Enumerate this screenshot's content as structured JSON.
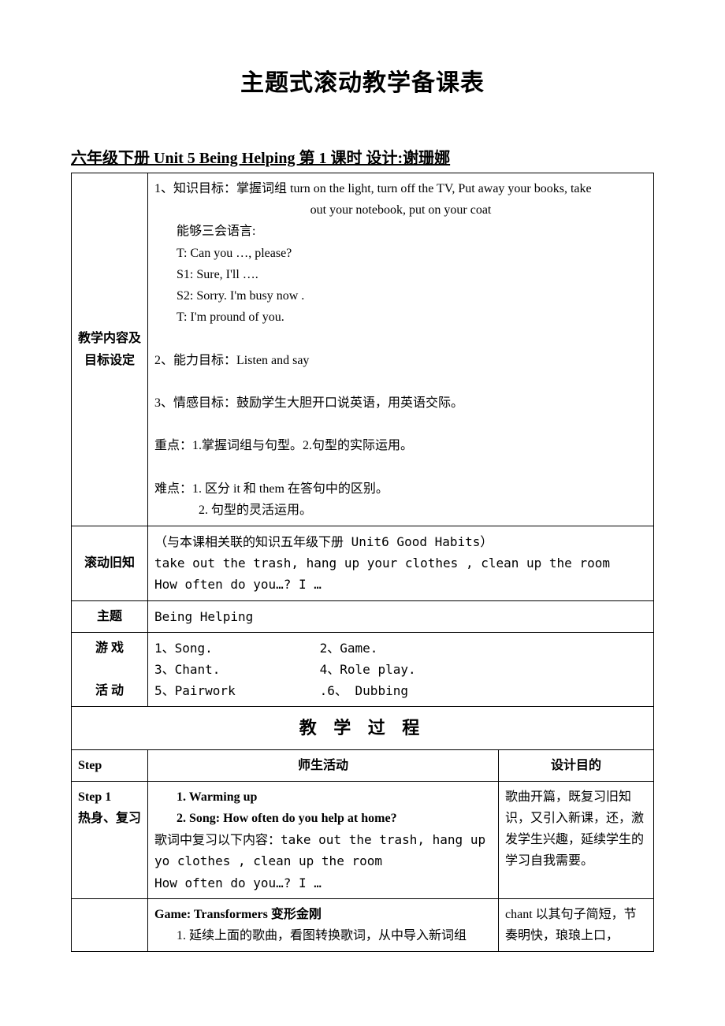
{
  "title": "主题式滚动教学备课表",
  "subtitle": "六年级下册  Unit 5   Being Helping    第 1 课时  设计:谢珊娜",
  "row1_label": "教学内容及目标设定",
  "goals": {
    "l1": "1、知识目标：掌握词组 turn on the light, turn off the TV, Put away your books, take",
    "l1b": "out your notebook, put on your coat",
    "l2": "能够三会语言:",
    "l3": "T: Can you …, please?",
    "l4": "S1: Sure, I'll ….",
    "l5": "S2: Sorry. I'm busy now .",
    "l6": "T: I'm pround of you.",
    "l7": "2、能力目标：Listen and say",
    "l8": "3、情感目标：鼓励学生大胆开口说英语，用英语交际。",
    "l9": "重点：1.掌握词组与句型。2.句型的实际运用。",
    "l10": "难点：1.  区分 it 和 them 在答句中的区别。",
    "l11": "2.  句型的灵活运用。"
  },
  "row2_label": "滚动旧知",
  "rolling": {
    "l1": "（与本课相关联的知识五年级下册 Unit6 Good Habits）",
    "l2": "take out the trash, hang up your clothes , clean up the room",
    "l3": "How often do you…? I …"
  },
  "row3_label": "主题",
  "theme": "Being Helping",
  "row4_label": "游 戏\n\n活 动",
  "games": {
    "g1": "1、Song.",
    "g2": "2、Game.",
    "g3": "3、Chant.",
    "g4": "4、Role play.",
    "g5": "5、Pairwork",
    "g6": ".6、  Dubbing"
  },
  "process_head": "教 学 过 程",
  "cols": {
    "c1": "Step",
    "c2": "师生活动",
    "c3": "设计目的"
  },
  "step1": {
    "label": "Step 1\n热身、复习",
    "act": {
      "a1": "1. Warming up",
      "a2": "2. Song: How often do you help at home?",
      "a3": "歌词中复习以下内容：take out the trash, hang up yo clothes , clean up the room",
      "a4": "How often do you…? I …"
    },
    "purpose": "歌曲开篇，既复习旧知识，又引入新课，还，激发学生兴趣，延续学生的学习自我需要。"
  },
  "step2": {
    "act": {
      "b1": "Game: Transformers 变形金刚",
      "b2": "1.  延续上面的歌曲，看图转换歌词，从中导入新词组"
    },
    "purpose": "chant 以其句子简短，节奏明快，琅琅上口，"
  }
}
